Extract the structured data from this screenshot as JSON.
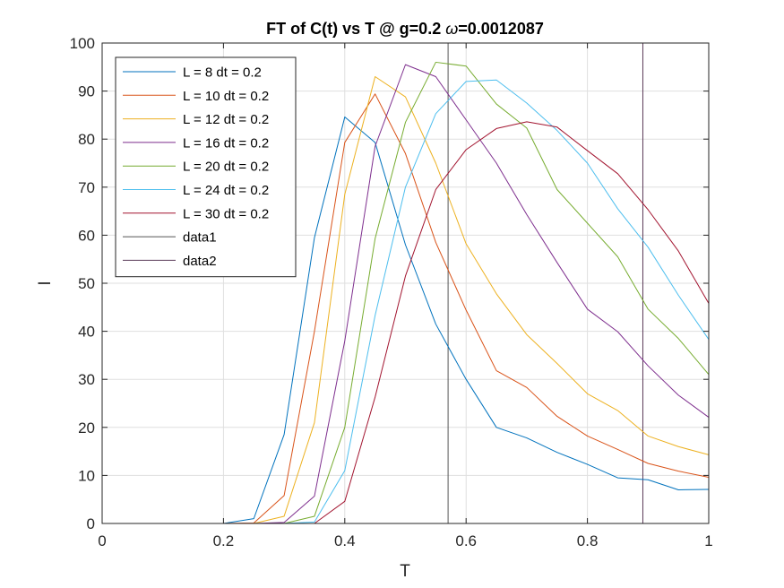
{
  "chart_data": {
    "type": "line",
    "title_prefix": "FT of C(t) vs T @ g=0.2 ",
    "title_omega": "ω",
    "title_suffix": "=0.0012087",
    "xlabel": "T",
    "ylabel": "I",
    "xlim": [
      0,
      1
    ],
    "ylim": [
      0,
      100
    ],
    "xticks": [
      0,
      0.2,
      0.4,
      0.6,
      0.8,
      1
    ],
    "xtick_labels": [
      "0",
      "0.2",
      "0.4",
      "0.6",
      "0.8",
      "1"
    ],
    "yticks": [
      0,
      10,
      20,
      30,
      40,
      50,
      60,
      70,
      80,
      90,
      100
    ],
    "ytick_labels": [
      "0",
      "10",
      "20",
      "30",
      "40",
      "50",
      "60",
      "70",
      "80",
      "90",
      "100"
    ],
    "grid": true,
    "legend_position": "top-left",
    "x": [
      0.05,
      0.1,
      0.15,
      0.2,
      0.25,
      0.3,
      0.35,
      0.4,
      0.45,
      0.5,
      0.55,
      0.6,
      0.65,
      0.7,
      0.75,
      0.8,
      0.85,
      0.9,
      0.95,
      1.0
    ],
    "series": [
      {
        "name": "L = 8 dt = 0.2",
        "color": "#0072BD",
        "values": [
          0,
          0,
          0,
          0,
          1.0,
          18.5,
          59.5,
          84.6,
          79.3,
          58.0,
          41.5,
          30.0,
          20.0,
          17.8,
          14.8,
          12.3,
          9.5,
          9.1,
          7.0,
          7.1
        ]
      },
      {
        "name": "L = 10 dt = 0.2",
        "color": "#D95319",
        "values": [
          0,
          0,
          0,
          0,
          0.1,
          5.8,
          40.0,
          79.3,
          89.4,
          77.0,
          58.5,
          44.4,
          31.8,
          28.3,
          22.3,
          18.2,
          15.4,
          12.5,
          10.9,
          9.6
        ]
      },
      {
        "name": "L = 12 dt = 0.2",
        "color": "#EDB120",
        "values": [
          0,
          0,
          0,
          0,
          0,
          1.5,
          21.0,
          68.5,
          93.0,
          88.8,
          75.0,
          58.2,
          47.8,
          39.3,
          33.3,
          27.0,
          23.5,
          18.2,
          16.0,
          14.3
        ]
      },
      {
        "name": "L = 16 dt = 0.2",
        "color": "#7E2F8E",
        "values": [
          0,
          0,
          0,
          0,
          0,
          0.2,
          5.7,
          38.0,
          78.5,
          95.5,
          93.0,
          84.0,
          75.0,
          64.3,
          54.3,
          44.6,
          39.9,
          32.8,
          26.7,
          22.1
        ]
      },
      {
        "name": "L = 20 dt = 0.2",
        "color": "#77AC30",
        "values": [
          0,
          0,
          0,
          0,
          0,
          0,
          1.5,
          20.0,
          59.3,
          83.5,
          96.0,
          95.2,
          87.3,
          82.3,
          69.5,
          62.5,
          55.5,
          44.6,
          38.5,
          31.0
        ]
      },
      {
        "name": "L = 24 dt = 0.2",
        "color": "#4DBEEE",
        "values": [
          0,
          0,
          0,
          0,
          0,
          0,
          0.3,
          11.0,
          43.3,
          70.0,
          85.3,
          92.0,
          92.3,
          87.5,
          81.8,
          75.0,
          65.5,
          57.5,
          47.5,
          38.3
        ]
      },
      {
        "name": "L = 30 dt = 0.2",
        "color": "#A2142F",
        "values": [
          0,
          0,
          0,
          0,
          0,
          0,
          0,
          4.6,
          26.3,
          51.5,
          69.5,
          77.8,
          82.2,
          83.6,
          82.5,
          77.6,
          72.8,
          65.3,
          56.7,
          45.8
        ]
      }
    ],
    "vertical_lines": [
      {
        "name": "data1",
        "x": 0.5703,
        "color": "#555555"
      },
      {
        "name": "data2",
        "x": 0.8914,
        "color": "#5a3a58"
      }
    ]
  }
}
